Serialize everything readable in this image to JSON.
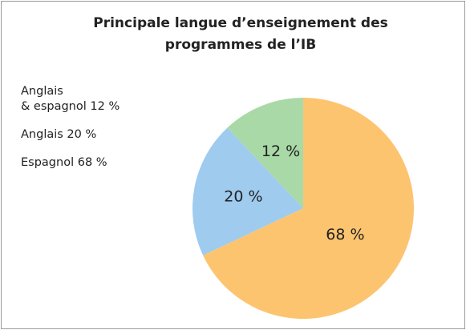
{
  "chart_data": {
    "type": "pie",
    "title": "Principale langue d’enseignement des\nprogrammes de l’IB",
    "categories": [
      "Espagnol",
      "Anglais",
      "Anglais\n& espagnol"
    ],
    "values": [
      68,
      20,
      12
    ],
    "value_labels": [
      "68 %",
      "20 %",
      "12 %"
    ],
    "colors": [
      "#fdc46f",
      "#9fcbef",
      "#a9d9a6"
    ]
  }
}
